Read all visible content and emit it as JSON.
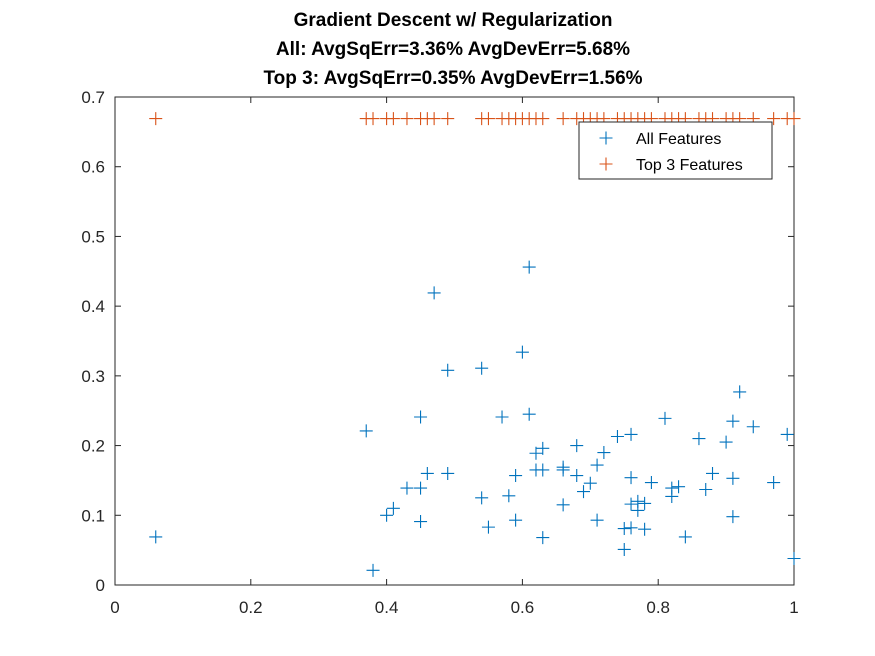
{
  "chart_data": {
    "type": "scatter",
    "title_lines": [
      "Gradient Descent w/ Regularization",
      "All: AvgSqErr=3.36% AvgDevErr=5.68%",
      "Top 3: AvgSqErr=0.35% AvgDevErr=1.56%"
    ],
    "xlabel": "",
    "ylabel": "",
    "xlim": [
      0,
      1
    ],
    "ylim": [
      0,
      0.7
    ],
    "xticks": [
      0,
      0.2,
      0.4,
      0.6,
      0.8,
      1
    ],
    "xtick_labels": [
      "0",
      "0.2",
      "0.4",
      "0.6",
      "0.8",
      "1"
    ],
    "yticks": [
      0,
      0.1,
      0.2,
      0.3,
      0.4,
      0.5,
      0.6,
      0.7
    ],
    "ytick_labels": [
      "0",
      "0.1",
      "0.2",
      "0.3",
      "0.4",
      "0.5",
      "0.6",
      "0.7"
    ],
    "grid": false,
    "marker": "+",
    "legend_position": "top-right",
    "series": [
      {
        "name": "All Features",
        "color": "#0072BD",
        "points": [
          [
            0.06,
            0.069
          ],
          [
            0.37,
            0.221
          ],
          [
            0.38,
            0.021
          ],
          [
            0.4,
            0.1
          ],
          [
            0.41,
            0.11
          ],
          [
            0.43,
            0.139
          ],
          [
            0.45,
            0.241
          ],
          [
            0.45,
            0.139
          ],
          [
            0.45,
            0.091
          ],
          [
            0.46,
            0.16
          ],
          [
            0.47,
            0.419
          ],
          [
            0.49,
            0.308
          ],
          [
            0.49,
            0.16
          ],
          [
            0.54,
            0.311
          ],
          [
            0.54,
            0.125
          ],
          [
            0.55,
            0.083
          ],
          [
            0.57,
            0.241
          ],
          [
            0.58,
            0.128
          ],
          [
            0.59,
            0.157
          ],
          [
            0.59,
            0.093
          ],
          [
            0.6,
            0.334
          ],
          [
            0.61,
            0.456
          ],
          [
            0.61,
            0.245
          ],
          [
            0.62,
            0.189
          ],
          [
            0.62,
            0.165
          ],
          [
            0.63,
            0.196
          ],
          [
            0.63,
            0.165
          ],
          [
            0.63,
            0.068
          ],
          [
            0.66,
            0.169
          ],
          [
            0.66,
            0.165
          ],
          [
            0.66,
            0.115
          ],
          [
            0.68,
            0.2
          ],
          [
            0.68,
            0.157
          ],
          [
            0.69,
            0.134
          ],
          [
            0.7,
            0.146
          ],
          [
            0.71,
            0.172
          ],
          [
            0.71,
            0.093
          ],
          [
            0.72,
            0.19
          ],
          [
            0.74,
            0.213
          ],
          [
            0.75,
            0.081
          ],
          [
            0.75,
            0.051
          ],
          [
            0.76,
            0.216
          ],
          [
            0.76,
            0.154
          ],
          [
            0.76,
            0.116
          ],
          [
            0.76,
            0.082
          ],
          [
            0.77,
            0.12
          ],
          [
            0.77,
            0.107
          ],
          [
            0.78,
            0.117
          ],
          [
            0.78,
            0.08
          ],
          [
            0.79,
            0.147
          ],
          [
            0.81,
            0.239
          ],
          [
            0.82,
            0.127
          ],
          [
            0.82,
            0.139
          ],
          [
            0.83,
            0.141
          ],
          [
            0.84,
            0.069
          ],
          [
            0.86,
            0.21
          ],
          [
            0.87,
            0.137
          ],
          [
            0.88,
            0.16
          ],
          [
            0.9,
            0.205
          ],
          [
            0.91,
            0.235
          ],
          [
            0.91,
            0.153
          ],
          [
            0.91,
            0.098
          ],
          [
            0.92,
            0.277
          ],
          [
            0.94,
            0.227
          ],
          [
            0.97,
            0.147
          ],
          [
            0.99,
            0.216
          ],
          [
            1.0,
            0.038
          ]
        ]
      },
      {
        "name": "Top 3 Features",
        "color": "#D95319",
        "points": [
          [
            0.06,
            0.669
          ],
          [
            0.37,
            0.669
          ],
          [
            0.38,
            0.669
          ],
          [
            0.4,
            0.669
          ],
          [
            0.41,
            0.669
          ],
          [
            0.43,
            0.669
          ],
          [
            0.45,
            0.669
          ],
          [
            0.46,
            0.669
          ],
          [
            0.47,
            0.669
          ],
          [
            0.49,
            0.669
          ],
          [
            0.54,
            0.669
          ],
          [
            0.55,
            0.669
          ],
          [
            0.57,
            0.669
          ],
          [
            0.58,
            0.669
          ],
          [
            0.59,
            0.669
          ],
          [
            0.6,
            0.669
          ],
          [
            0.61,
            0.669
          ],
          [
            0.62,
            0.669
          ],
          [
            0.63,
            0.669
          ],
          [
            0.66,
            0.669
          ],
          [
            0.68,
            0.669
          ],
          [
            0.69,
            0.669
          ],
          [
            0.7,
            0.669
          ],
          [
            0.71,
            0.669
          ],
          [
            0.72,
            0.669
          ],
          [
            0.74,
            0.669
          ],
          [
            0.75,
            0.669
          ],
          [
            0.76,
            0.669
          ],
          [
            0.77,
            0.669
          ],
          [
            0.78,
            0.669
          ],
          [
            0.79,
            0.669
          ],
          [
            0.81,
            0.669
          ],
          [
            0.82,
            0.669
          ],
          [
            0.83,
            0.669
          ],
          [
            0.84,
            0.669
          ],
          [
            0.86,
            0.669
          ],
          [
            0.87,
            0.669
          ],
          [
            0.88,
            0.669
          ],
          [
            0.9,
            0.669
          ],
          [
            0.91,
            0.669
          ],
          [
            0.92,
            0.669
          ],
          [
            0.94,
            0.669
          ],
          [
            0.97,
            0.669
          ],
          [
            0.99,
            0.669
          ],
          [
            1.0,
            0.669
          ]
        ]
      }
    ]
  }
}
